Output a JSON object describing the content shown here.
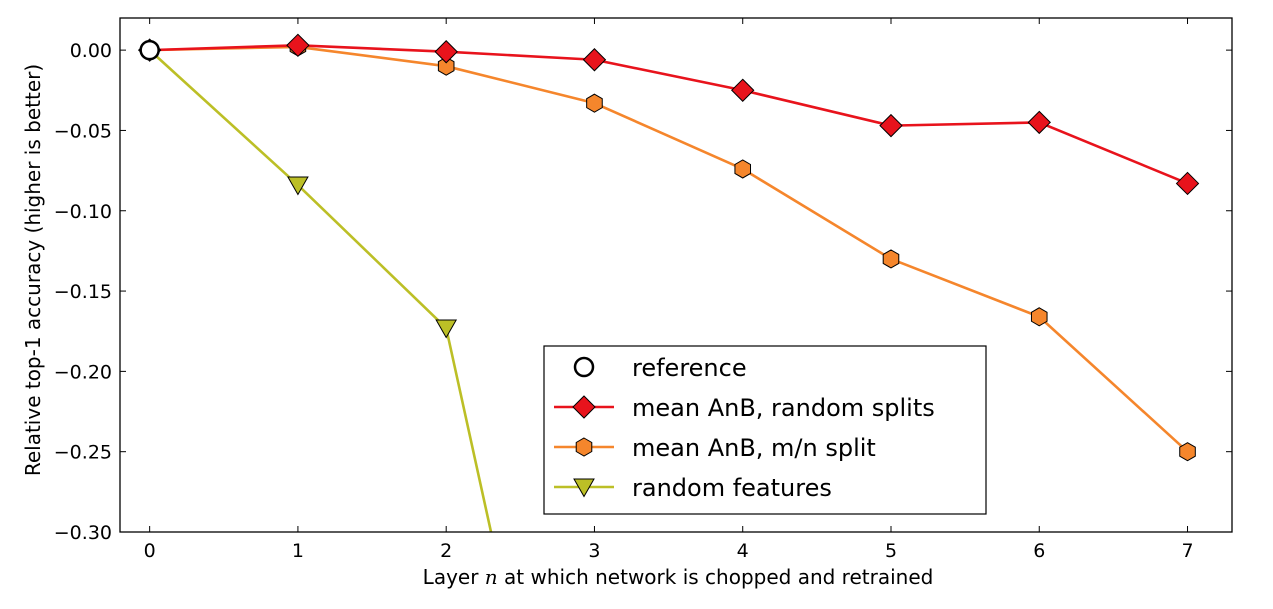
{
  "chart_data": {
    "type": "line",
    "title": "",
    "xlabel": "Layer n at which network is chopped and retrained",
    "xlabel_parts": {
      "before": "Layer ",
      "var": "n",
      "after": " at which network is chopped and retrained"
    },
    "ylabel": "Relative top-1 accuracy (higher is better)",
    "xlim": [
      -0.2,
      7.3
    ],
    "ylim": [
      -0.3,
      0.02
    ],
    "xticks": [
      0,
      1,
      2,
      3,
      4,
      5,
      6,
      7
    ],
    "xtick_labels": [
      "0",
      "1",
      "2",
      "3",
      "4",
      "5",
      "6",
      "7"
    ],
    "yticks": [
      0.0,
      -0.05,
      -0.1,
      -0.15,
      -0.2,
      -0.25,
      -0.3
    ],
    "ytick_labels": [
      "0.00",
      "−0.05",
      "−0.10",
      "−0.15",
      "−0.20",
      "−0.25",
      "−0.30"
    ],
    "grid": false,
    "legend_position": "bottom-center",
    "series": [
      {
        "name": "reference",
        "marker": "circle",
        "color": "#ffffff",
        "edge": "#000000",
        "line": false,
        "x": [
          0
        ],
        "y": [
          0.0
        ]
      },
      {
        "name": "mean AnB, random splits",
        "marker": "diamond",
        "color": "#e8131c",
        "edge": "#000000",
        "line_color": "#e8131c",
        "x": [
          0,
          1,
          2,
          3,
          4,
          5,
          6,
          7
        ],
        "y": [
          0.0,
          0.003,
          -0.001,
          -0.006,
          -0.025,
          -0.047,
          -0.045,
          -0.083
        ]
      },
      {
        "name": "mean AnB, m/n split",
        "marker": "hexagon",
        "color": "#f5862c",
        "edge": "#000000",
        "line_color": "#f5862c",
        "x": [
          0,
          1,
          2,
          3,
          4,
          5,
          6,
          7
        ],
        "y": [
          0.0,
          0.002,
          -0.01,
          -0.033,
          -0.074,
          -0.13,
          -0.166,
          -0.25
        ]
      },
      {
        "name": "random features",
        "marker": "triangle-down",
        "color": "#bcbf26",
        "edge": "#000000",
        "line_color": "#bcbf26",
        "x": [
          0,
          1,
          2,
          2.35
        ],
        "y": [
          0.0,
          -0.084,
          -0.173,
          -0.32
        ],
        "marker_count": 2,
        "marker_indices": [
          1,
          2
        ]
      }
    ]
  }
}
